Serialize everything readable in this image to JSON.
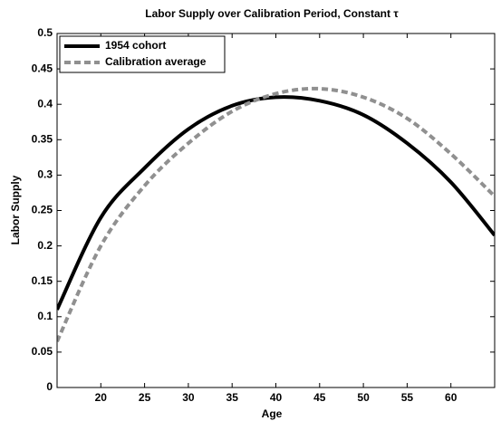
{
  "chart_data": {
    "type": "line",
    "title": "Labor Supply over Calibration Period, Constant τ",
    "xlabel": "Age",
    "ylabel": "Labor Supply",
    "x": [
      15,
      20,
      25,
      30,
      35,
      40,
      45,
      50,
      55,
      60,
      65
    ],
    "series": [
      {
        "name": "1954 cohort",
        "color": "#000000",
        "dash": false,
        "values": [
          0.11,
          0.24,
          0.31,
          0.365,
          0.398,
          0.41,
          0.405,
          0.385,
          0.345,
          0.29,
          0.215
        ]
      },
      {
        "name": "Calibration average",
        "color": "#909090",
        "dash": true,
        "values": [
          0.065,
          0.2,
          0.285,
          0.345,
          0.39,
          0.415,
          0.422,
          0.41,
          0.38,
          0.33,
          0.27
        ]
      }
    ],
    "xlim": [
      15,
      65
    ],
    "xticks": [
      20,
      25,
      30,
      35,
      40,
      45,
      50,
      55,
      60
    ],
    "ylim": [
      0,
      0.5
    ],
    "yticks": [
      0,
      0.05,
      0.1,
      0.15,
      0.2,
      0.25,
      0.3,
      0.35,
      0.4,
      0.45,
      0.5
    ],
    "legend": "upper-left"
  }
}
